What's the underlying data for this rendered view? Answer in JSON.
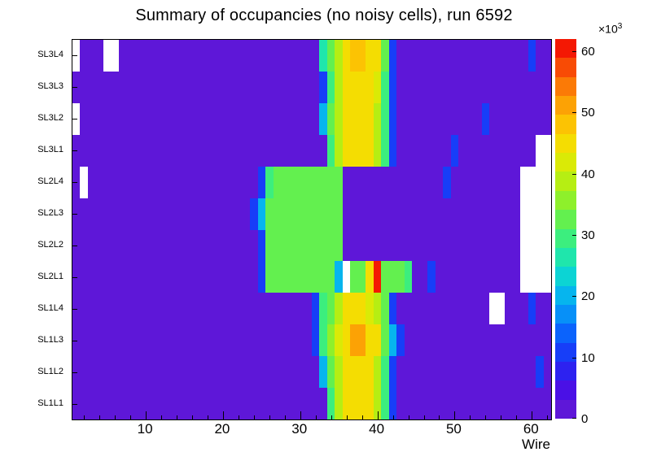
{
  "title": "Summary of occupancies (no noisy cells), run 6592",
  "axes": {
    "x_label": "Wire",
    "x_ticks": [
      10,
      20,
      30,
      40,
      50,
      60
    ],
    "x_minor_step": 2,
    "x_min": 0.5,
    "x_max": 62.5
  },
  "colorbar": {
    "ticks": [
      0,
      10,
      20,
      30,
      40,
      50,
      60
    ],
    "max": 62,
    "exponent_base": "×10",
    "exponent_power": "3"
  },
  "chart_data": {
    "type": "heatmap",
    "title": "Summary of occupancies (no noisy cells), run 6592",
    "xlabel": "Wire",
    "x_range": [
      1,
      62
    ],
    "z_unit": "×10³",
    "z_max": 62,
    "z_ticks": [
      0,
      10,
      20,
      30,
      40,
      50,
      60
    ],
    "empty_cell_color": "#ffffff",
    "palette": [
      "#5e17d8",
      "#4a10e6",
      "#2d22f0",
      "#173ef8",
      "#0b63fc",
      "#0790f8",
      "#06b5ee",
      "#0cd4d4",
      "#1fe6ac",
      "#3cee7e",
      "#63f04f",
      "#8ef02b",
      "#b6ee13",
      "#daea06",
      "#f4dd02",
      "#fcc303",
      "#fca205",
      "#fb7a06",
      "#f84b05",
      "#f41803"
    ],
    "row_labels": [
      "SL3L4",
      "SL3L3",
      "SL3L2",
      "SL3L1",
      "SL2L4",
      "SL2L3",
      "SL2L2",
      "SL2L1",
      "SL1L4",
      "SL1L3",
      "SL1L2",
      "SL1L1"
    ],
    "values_by_row": [
      [
        null,
        3,
        3,
        3,
        null,
        null,
        3,
        3,
        3,
        3,
        3,
        3,
        3,
        3,
        3,
        3,
        3,
        3,
        3,
        3,
        3,
        3,
        3,
        3,
        3,
        3,
        3,
        3,
        3,
        3,
        3,
        3,
        26,
        33,
        40,
        46,
        47,
        47,
        46,
        44,
        33,
        10,
        3,
        3,
        3,
        3,
        3,
        3,
        3,
        3,
        3,
        3,
        3,
        3,
        3,
        3,
        3,
        3,
        3,
        12,
        3,
        3
      ],
      [
        3,
        3,
        3,
        3,
        3,
        3,
        3,
        3,
        3,
        3,
        3,
        3,
        3,
        3,
        3,
        3,
        3,
        3,
        3,
        3,
        3,
        3,
        3,
        3,
        3,
        3,
        3,
        3,
        3,
        3,
        3,
        3,
        10,
        30,
        38,
        45,
        46,
        46,
        45,
        42,
        30,
        12,
        3,
        3,
        3,
        3,
        3,
        3,
        3,
        3,
        3,
        3,
        3,
        3,
        3,
        3,
        3,
        3,
        3,
        3,
        3,
        3
      ],
      [
        null,
        3,
        3,
        3,
        3,
        3,
        3,
        3,
        3,
        3,
        3,
        3,
        3,
        3,
        3,
        3,
        3,
        3,
        3,
        3,
        3,
        3,
        3,
        3,
        3,
        3,
        3,
        3,
        3,
        3,
        3,
        3,
        20,
        32,
        40,
        45,
        46,
        46,
        44,
        40,
        30,
        10,
        3,
        3,
        3,
        3,
        3,
        3,
        3,
        3,
        3,
        3,
        3,
        10,
        3,
        3,
        3,
        3,
        3,
        3,
        3,
        3
      ],
      [
        3,
        3,
        3,
        3,
        3,
        3,
        3,
        3,
        3,
        3,
        3,
        3,
        3,
        3,
        3,
        3,
        3,
        3,
        3,
        3,
        3,
        3,
        3,
        3,
        3,
        3,
        3,
        3,
        3,
        3,
        3,
        3,
        3,
        30,
        38,
        44,
        45,
        45,
        44,
        40,
        28,
        10,
        3,
        3,
        3,
        3,
        3,
        3,
        3,
        10,
        3,
        3,
        3,
        3,
        3,
        3,
        3,
        3,
        3,
        3,
        null,
        null
      ],
      [
        3,
        null,
        3,
        3,
        3,
        3,
        3,
        3,
        3,
        3,
        3,
        3,
        3,
        3,
        3,
        3,
        3,
        3,
        3,
        3,
        3,
        3,
        3,
        3,
        10,
        30,
        32,
        33,
        32,
        33,
        32,
        33,
        34,
        33,
        32,
        3,
        3,
        3,
        3,
        3,
        3,
        3,
        3,
        3,
        3,
        3,
        3,
        3,
        10,
        3,
        3,
        3,
        3,
        3,
        3,
        3,
        3,
        3,
        null,
        null,
        null,
        null
      ],
      [
        3,
        3,
        3,
        3,
        3,
        3,
        3,
        3,
        3,
        3,
        3,
        3,
        3,
        3,
        3,
        3,
        3,
        3,
        3,
        3,
        3,
        3,
        3,
        10,
        20,
        31,
        32,
        33,
        32,
        32,
        33,
        32,
        33,
        32,
        31,
        3,
        3,
        3,
        3,
        3,
        3,
        3,
        3,
        3,
        3,
        3,
        3,
        3,
        3,
        3,
        3,
        3,
        3,
        3,
        3,
        3,
        3,
        3,
        null,
        null,
        null,
        null
      ],
      [
        3,
        3,
        3,
        3,
        3,
        3,
        3,
        3,
        3,
        3,
        3,
        3,
        3,
        3,
        3,
        3,
        3,
        3,
        3,
        3,
        3,
        3,
        3,
        3,
        10,
        32,
        33,
        32,
        33,
        34,
        33,
        32,
        33,
        32,
        31,
        3,
        3,
        3,
        3,
        3,
        3,
        3,
        3,
        3,
        3,
        3,
        3,
        3,
        3,
        3,
        3,
        3,
        3,
        3,
        3,
        3,
        3,
        3,
        null,
        null,
        null,
        null
      ],
      [
        3,
        3,
        3,
        3,
        3,
        3,
        3,
        3,
        3,
        3,
        3,
        3,
        3,
        3,
        3,
        3,
        3,
        3,
        3,
        3,
        3,
        3,
        3,
        3,
        12,
        32,
        33,
        34,
        33,
        32,
        33,
        34,
        33,
        32,
        20,
        null,
        32,
        33,
        46,
        60,
        33,
        32,
        33,
        30,
        3,
        3,
        10,
        3,
        3,
        3,
        3,
        3,
        3,
        3,
        3,
        3,
        3,
        3,
        null,
        null,
        null,
        null
      ],
      [
        3,
        3,
        3,
        3,
        3,
        3,
        3,
        3,
        3,
        3,
        3,
        3,
        3,
        3,
        3,
        3,
        3,
        3,
        3,
        3,
        3,
        3,
        3,
        3,
        3,
        3,
        3,
        3,
        3,
        3,
        3,
        10,
        30,
        33,
        40,
        44,
        45,
        44,
        43,
        40,
        32,
        10,
        3,
        3,
        3,
        3,
        3,
        3,
        3,
        3,
        3,
        3,
        3,
        3,
        null,
        null,
        3,
        3,
        3,
        10,
        3,
        3
      ],
      [
        3,
        3,
        3,
        3,
        3,
        3,
        3,
        3,
        3,
        3,
        3,
        3,
        3,
        3,
        3,
        3,
        3,
        3,
        3,
        3,
        3,
        3,
        3,
        3,
        3,
        3,
        3,
        3,
        3,
        3,
        3,
        10,
        30,
        36,
        42,
        46,
        50,
        50,
        46,
        44,
        34,
        20,
        10,
        3,
        3,
        3,
        3,
        3,
        3,
        3,
        3,
        3,
        3,
        3,
        3,
        3,
        3,
        3,
        3,
        3,
        3,
        3
      ],
      [
        3,
        3,
        3,
        3,
        3,
        3,
        3,
        3,
        3,
        3,
        3,
        3,
        3,
        3,
        3,
        3,
        3,
        3,
        3,
        3,
        3,
        3,
        3,
        3,
        3,
        3,
        3,
        3,
        3,
        3,
        3,
        3,
        20,
        32,
        40,
        45,
        46,
        45,
        44,
        40,
        30,
        10,
        3,
        3,
        3,
        3,
        3,
        3,
        3,
        3,
        3,
        3,
        3,
        3,
        3,
        3,
        3,
        3,
        3,
        3,
        10,
        3
      ],
      [
        3,
        3,
        3,
        3,
        3,
        3,
        3,
        3,
        3,
        3,
        3,
        3,
        3,
        3,
        3,
        3,
        3,
        3,
        3,
        3,
        3,
        3,
        3,
        3,
        3,
        3,
        3,
        3,
        3,
        3,
        3,
        3,
        3,
        30,
        38,
        44,
        45,
        45,
        44,
        38,
        28,
        10,
        3,
        3,
        3,
        3,
        3,
        3,
        3,
        3,
        3,
        3,
        3,
        3,
        3,
        3,
        3,
        3,
        3,
        3,
        3,
        3
      ]
    ]
  }
}
